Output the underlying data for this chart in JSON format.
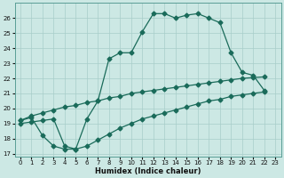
{
  "xlabel": "Humidex (Indice chaleur)",
  "bg_color": "#cce8e4",
  "line_color": "#1a6b5a",
  "grid_color": "#a8cdc9",
  "xlim": [
    -0.5,
    23.5
  ],
  "ylim": [
    16.8,
    27.0
  ],
  "xticks": [
    0,
    1,
    2,
    3,
    4,
    5,
    6,
    7,
    8,
    9,
    10,
    11,
    12,
    13,
    14,
    15,
    16,
    17,
    18,
    19,
    20,
    21,
    22,
    23
  ],
  "yticks": [
    17,
    18,
    19,
    20,
    21,
    22,
    23,
    24,
    25,
    26
  ],
  "line1_x": [
    0,
    1,
    2,
    3,
    4,
    5,
    6,
    7,
    8,
    9,
    10,
    11,
    12,
    13,
    14,
    15,
    16,
    17,
    18,
    19,
    20,
    21,
    22
  ],
  "line1_y": [
    19.2,
    19.4,
    18.2,
    17.5,
    17.3,
    17.3,
    19.3,
    20.5,
    23.3,
    23.7,
    23.7,
    25.1,
    26.3,
    26.3,
    26.0,
    26.2,
    26.3,
    26.0,
    25.7,
    23.7,
    22.4,
    22.2,
    21.2
  ],
  "line2_x": [
    0,
    1,
    2,
    3,
    4,
    5,
    6,
    7,
    8,
    9,
    10,
    11,
    12,
    13,
    14,
    15,
    16,
    17,
    18,
    19,
    20,
    21,
    22
  ],
  "line2_y": [
    19.2,
    19.5,
    19.7,
    19.9,
    20.1,
    20.2,
    20.4,
    20.5,
    20.7,
    20.8,
    21.0,
    21.1,
    21.2,
    21.3,
    21.4,
    21.5,
    21.6,
    21.7,
    21.8,
    21.9,
    22.0,
    22.05,
    22.1
  ],
  "line3_x": [
    0,
    1,
    2,
    3,
    4,
    5,
    6,
    7,
    8,
    9,
    10,
    11,
    12,
    13,
    14,
    15,
    16,
    17,
    18,
    19,
    20,
    21,
    22
  ],
  "line3_y": [
    19.0,
    19.1,
    19.2,
    19.3,
    17.5,
    17.3,
    17.5,
    17.9,
    18.3,
    18.7,
    19.0,
    19.3,
    19.5,
    19.7,
    19.9,
    20.1,
    20.3,
    20.5,
    20.6,
    20.8,
    20.9,
    21.0,
    21.1
  ]
}
